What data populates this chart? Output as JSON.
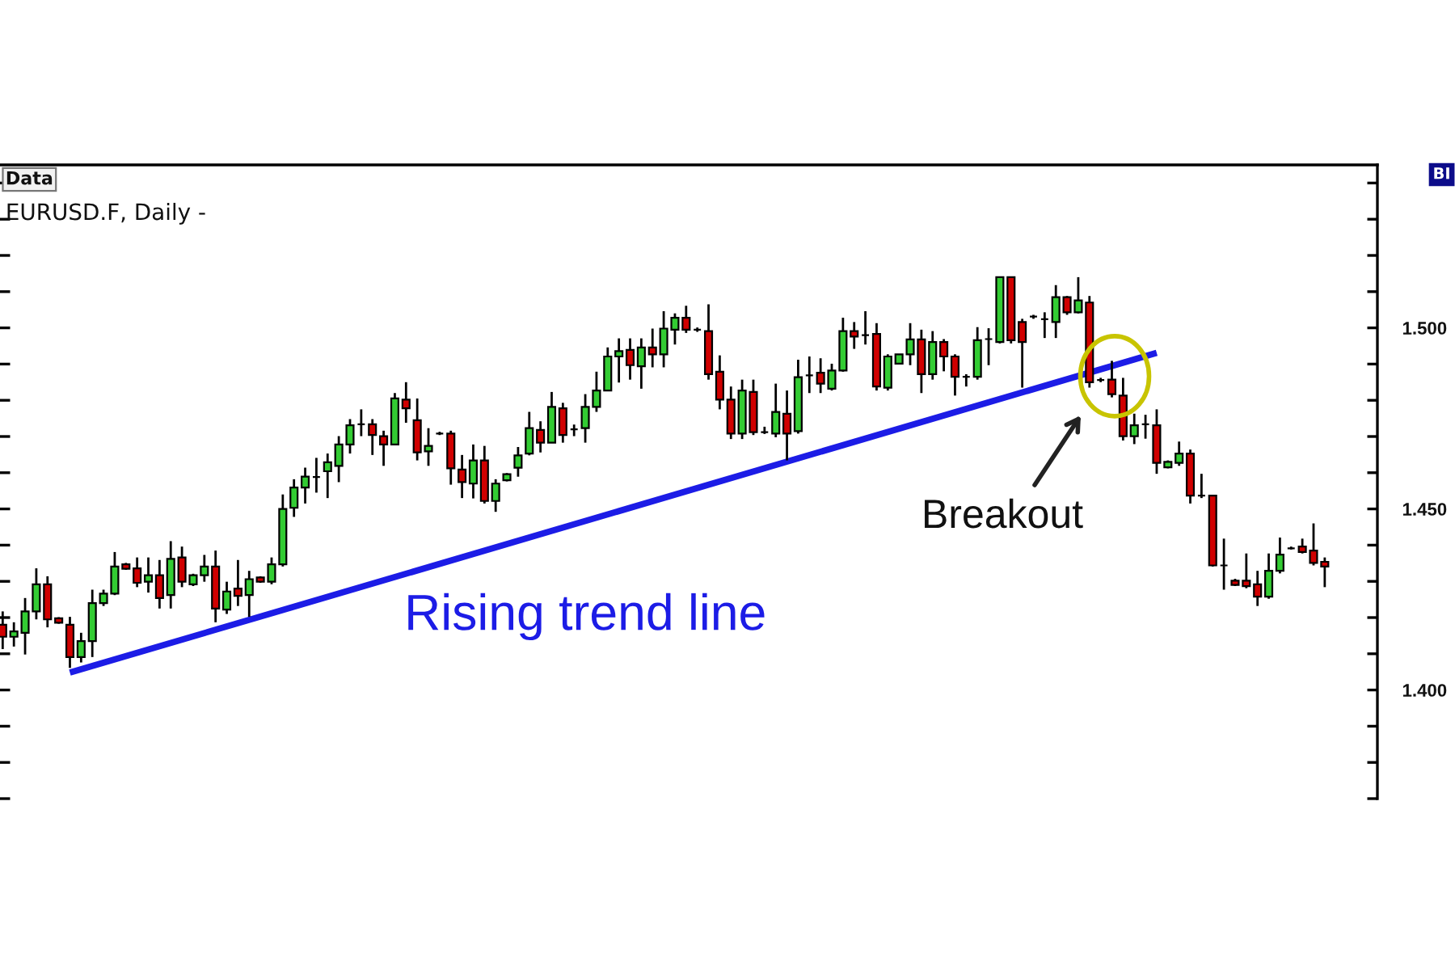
{
  "chart_data": {
    "type": "candlestick",
    "title": "EURUSD.F, Daily -",
    "categories": [
      null,
      null,
      null,
      null,
      null,
      null,
      null,
      null,
      null,
      null,
      null,
      null,
      null,
      null,
      null,
      null,
      null,
      null,
      null,
      null,
      null,
      null,
      null,
      null,
      null,
      null,
      null,
      null,
      null,
      null,
      null,
      null,
      null,
      null,
      null,
      null,
      null,
      null,
      null,
      null,
      null,
      null,
      null,
      null,
      null,
      null,
      null,
      null,
      null,
      null,
      null,
      null,
      null,
      null,
      null,
      null,
      null,
      null,
      null,
      null,
      null,
      null,
      null,
      null,
      null,
      null,
      null,
      null,
      null,
      null,
      null,
      null,
      null,
      null,
      null,
      null,
      null,
      null,
      null,
      null,
      null,
      null,
      null,
      null,
      null,
      null,
      null,
      null,
      null,
      null,
      null,
      null,
      null,
      null,
      null,
      null,
      null,
      null,
      null,
      null,
      null,
      null,
      null,
      null,
      null,
      null,
      null,
      null,
      null,
      null,
      null,
      null,
      null,
      null,
      null,
      null,
      null,
      null,
      null
    ],
    "ohlc": [
      [
        1.418,
        1.4217,
        1.4113,
        1.4147
      ],
      [
        1.4147,
        1.4187,
        1.412,
        1.4162
      ],
      [
        1.4158,
        1.4254,
        1.4098,
        1.4217
      ],
      [
        1.4217,
        1.4336,
        1.4195,
        1.4292
      ],
      [
        1.4292,
        1.4314,
        1.4173,
        1.4195
      ],
      [
        1.4198,
        1.4201,
        1.4183,
        1.4186
      ],
      [
        1.418,
        1.4202,
        1.4061,
        1.4091
      ],
      [
        1.4091,
        1.4158,
        1.4076,
        1.4135
      ],
      [
        1.4135,
        1.4277,
        1.4091,
        1.424
      ],
      [
        1.424,
        1.4277,
        1.4232,
        1.4266
      ],
      [
        1.4266,
        1.4381,
        1.4262,
        1.4341
      ],
      [
        1.4347,
        1.4351,
        1.4332,
        1.4335
      ],
      [
        1.4336,
        1.4366,
        1.4284,
        1.4296
      ],
      [
        1.4299,
        1.4366,
        1.4269,
        1.4317
      ],
      [
        1.4317,
        1.4359,
        1.4225,
        1.4254
      ],
      [
        1.4262,
        1.4411,
        1.4225,
        1.4362
      ],
      [
        1.4366,
        1.4396,
        1.4284,
        1.4299
      ],
      [
        1.4292,
        1.4321,
        1.4287,
        1.4317
      ],
      [
        1.4317,
        1.4373,
        1.4299,
        1.4341
      ],
      [
        1.4341,
        1.4385,
        1.4187,
        1.4225
      ],
      [
        1.4222,
        1.4299,
        1.421,
        1.4272
      ],
      [
        1.428,
        1.4359,
        1.4232,
        1.426
      ],
      [
        1.4262,
        1.4329,
        1.4202,
        1.4306
      ],
      [
        1.4311,
        1.4314,
        1.4296,
        1.4299
      ],
      [
        1.4299,
        1.4366,
        1.4292,
        1.4347
      ],
      [
        1.4347,
        1.454,
        1.4341,
        1.45
      ],
      [
        1.4503,
        1.4582,
        1.4478,
        1.4559
      ],
      [
        1.4559,
        1.4614,
        1.4515,
        1.4589
      ],
      [
        1.4588,
        1.4641,
        1.4545,
        1.4588
      ],
      [
        1.4604,
        1.4653,
        1.453,
        1.4629
      ],
      [
        1.4619,
        1.4701,
        1.4574,
        1.4678
      ],
      [
        1.4678,
        1.4748,
        1.4653,
        1.4731
      ],
      [
        1.4734,
        1.4775,
        1.4701,
        1.4734
      ],
      [
        1.4734,
        1.4748,
        1.4649,
        1.4704
      ],
      [
        1.4701,
        1.4716,
        1.4619,
        1.4678
      ],
      [
        1.4678,
        1.482,
        1.4678,
        1.4805
      ],
      [
        1.4802,
        1.485,
        1.4738,
        1.4778
      ],
      [
        1.4745,
        1.4805,
        1.4634,
        1.4656
      ],
      [
        1.4659,
        1.4723,
        1.4619,
        1.4674
      ],
      [
        1.4708,
        1.4713,
        1.4704,
        1.4708
      ],
      [
        1.4708,
        1.4716,
        1.4567,
        1.4612
      ],
      [
        1.4609,
        1.4649,
        1.453,
        1.4574
      ],
      [
        1.457,
        1.4678,
        1.4529,
        1.4634
      ],
      [
        1.4634,
        1.4674,
        1.4515,
        1.4522
      ],
      [
        1.4522,
        1.4582,
        1.4492,
        1.457
      ],
      [
        1.4579,
        1.4599,
        1.4576,
        1.4596
      ],
      [
        1.4614,
        1.4671,
        1.4589,
        1.4648
      ],
      [
        1.4653,
        1.4768,
        1.4648,
        1.4723
      ],
      [
        1.4718,
        1.4742,
        1.4656,
        1.4683
      ],
      [
        1.4683,
        1.4823,
        1.4683,
        1.4782
      ],
      [
        1.4778,
        1.4793,
        1.4683,
        1.4704
      ],
      [
        1.472,
        1.4733,
        1.4701,
        1.472
      ],
      [
        1.4723,
        1.4817,
        1.4683,
        1.4782
      ],
      [
        1.4782,
        1.4879,
        1.4768,
        1.4827
      ],
      [
        1.4827,
        1.4946,
        1.4827,
        1.4921
      ],
      [
        1.4921,
        1.4971,
        1.4849,
        1.4936
      ],
      [
        1.4939,
        1.4971,
        1.4857,
        1.4897
      ],
      [
        1.4894,
        1.4971,
        1.4832,
        1.4946
      ],
      [
        1.4946,
        1.4998,
        1.4891,
        1.4927
      ],
      [
        1.4927,
        1.5046,
        1.4891,
        1.4998
      ],
      [
        1.4995,
        1.504,
        1.4954,
        1.5028
      ],
      [
        1.5028,
        1.5061,
        1.4986,
        1.4995
      ],
      [
        1.4995,
        1.5001,
        1.4989,
        1.4995
      ],
      [
        1.4991,
        1.5065,
        1.4857,
        1.4872
      ],
      [
        1.4879,
        1.4924,
        1.4775,
        1.4802
      ],
      [
        1.4802,
        1.4838,
        1.4693,
        1.4708
      ],
      [
        1.4708,
        1.4857,
        1.4693,
        1.4827
      ],
      [
        1.4823,
        1.4857,
        1.4704,
        1.4712
      ],
      [
        1.4712,
        1.4727,
        1.4707,
        1.4712
      ],
      [
        1.4708,
        1.4846,
        1.4698,
        1.4768
      ],
      [
        1.4763,
        1.4827,
        1.4634,
        1.4708
      ],
      [
        1.4715,
        1.4912,
        1.4708,
        1.4864
      ],
      [
        1.4869,
        1.4921,
        1.482,
        1.4869
      ],
      [
        1.4876,
        1.4916,
        1.482,
        1.4846
      ],
      [
        1.4832,
        1.4901,
        1.4827,
        1.4882
      ],
      [
        1.4882,
        1.5028,
        1.4879,
        1.4991
      ],
      [
        1.4991,
        1.5016,
        1.4942,
        1.4976
      ],
      [
        1.498,
        1.5046,
        1.4954,
        1.498
      ],
      [
        1.4983,
        1.5013,
        1.4827,
        1.4838
      ],
      [
        1.4835,
        1.4927,
        1.4827,
        1.4921
      ],
      [
        1.4901,
        1.4927,
        1.4901,
        1.4927
      ],
      [
        1.4927,
        1.5013,
        1.4897,
        1.4968
      ],
      [
        1.4968,
        1.4995,
        1.482,
        1.4872
      ],
      [
        1.4872,
        1.4991,
        1.4857,
        1.4961
      ],
      [
        1.4961,
        1.4969,
        1.488,
        1.4921
      ],
      [
        1.4921,
        1.4927,
        1.4813,
        1.4865
      ],
      [
        1.4865,
        1.4872,
        1.4838,
        1.4865
      ],
      [
        1.4865,
        1.5002,
        1.4857,
        1.4966
      ],
      [
        1.4969,
        1.4999,
        1.4897,
        1.4969
      ],
      [
        1.4961,
        1.514,
        1.4957,
        1.514
      ],
      [
        1.514,
        1.514,
        1.4957,
        1.4966
      ],
      [
        1.5016,
        1.5025,
        1.4835,
        1.4961
      ],
      [
        1.5031,
        1.5036,
        1.5025,
        1.5031
      ],
      [
        1.5024,
        1.5043,
        1.4972,
        1.5024
      ],
      [
        1.5016,
        1.5118,
        1.4972,
        1.5085
      ],
      [
        1.5085,
        1.5088,
        1.5036,
        1.5043
      ],
      [
        1.5043,
        1.514,
        1.504,
        1.5076
      ],
      [
        1.507,
        1.5088,
        1.4835,
        1.485
      ],
      [
        1.4856,
        1.4862,
        1.485,
        1.4856
      ],
      [
        1.4857,
        1.4909,
        1.4808,
        1.4817
      ],
      [
        1.4813,
        1.4862,
        1.4689,
        1.4701
      ],
      [
        1.4701,
        1.4763,
        1.4679,
        1.4731
      ],
      [
        1.4734,
        1.476,
        1.4694,
        1.4734
      ],
      [
        1.4731,
        1.4775,
        1.4597,
        1.4627
      ],
      [
        1.4615,
        1.4634,
        1.4612,
        1.463
      ],
      [
        1.4627,
        1.4686,
        1.4619,
        1.4653
      ],
      [
        1.4653,
        1.4664,
        1.4515,
        1.4537
      ],
      [
        1.4537,
        1.4597,
        1.453,
        1.4537
      ],
      [
        1.4537,
        1.4537,
        1.4341,
        1.4344
      ],
      [
        1.4344,
        1.4418,
        1.4277,
        1.4344
      ],
      [
        1.4302,
        1.4307,
        1.4287,
        1.429
      ],
      [
        1.4302,
        1.4377,
        1.4281,
        1.4287
      ],
      [
        1.4292,
        1.4329,
        1.4232,
        1.4258
      ],
      [
        1.4258,
        1.4377,
        1.4252,
        1.4329
      ],
      [
        1.4329,
        1.4421,
        1.4322,
        1.4374
      ],
      [
        1.4391,
        1.4396,
        1.4388,
        1.4391
      ],
      [
        1.4396,
        1.4418,
        1.4377,
        1.4381
      ],
      [
        1.4385,
        1.446,
        1.4344,
        1.4351
      ],
      [
        1.4354,
        1.4366,
        1.4284,
        1.4341
      ]
    ],
    "colors": [
      "#d00000",
      "#33cc33",
      "#33cc33",
      "#33cc33",
      "#d00000",
      "#d00000",
      "#d00000",
      "#33cc33",
      "#33cc33",
      "#33cc33",
      "#33cc33",
      "#d00000",
      "#d00000",
      "#33cc33",
      "#d00000",
      "#33cc33",
      "#d00000",
      "#33cc33",
      "#33cc33",
      "#d00000",
      "#33cc33",
      "#d00000",
      "#33cc33",
      "#d00000",
      "#33cc33",
      "#33cc33",
      "#33cc33",
      "#33cc33",
      "#000000",
      "#33cc33",
      "#33cc33",
      "#33cc33",
      "#000000",
      "#d00000",
      "#d00000",
      "#33cc33",
      "#d00000",
      "#d00000",
      "#33cc33",
      "#000000",
      "#d00000",
      "#d00000",
      "#33cc33",
      "#d00000",
      "#33cc33",
      "#33cc33",
      "#33cc33",
      "#33cc33",
      "#d00000",
      "#33cc33",
      "#d00000",
      "#000000",
      "#33cc33",
      "#33cc33",
      "#33cc33",
      "#33cc33",
      "#d00000",
      "#33cc33",
      "#d00000",
      "#33cc33",
      "#33cc33",
      "#d00000",
      "#000000",
      "#d00000",
      "#d00000",
      "#d00000",
      "#33cc33",
      "#d00000",
      "#000000",
      "#33cc33",
      "#d00000",
      "#33cc33",
      "#000000",
      "#d00000",
      "#33cc33",
      "#33cc33",
      "#d00000",
      "#000000",
      "#d00000",
      "#33cc33",
      "#33cc33",
      "#33cc33",
      "#d00000",
      "#33cc33",
      "#d00000",
      "#d00000",
      "#000000",
      "#33cc33",
      "#000000",
      "#33cc33",
      "#d00000",
      "#d00000",
      "#000000",
      "#000000",
      "#33cc33",
      "#d00000",
      "#33cc33",
      "#d00000",
      "#000000",
      "#d00000",
      "#d00000",
      "#33cc33",
      "#000000",
      "#d00000",
      "#33cc33",
      "#33cc33",
      "#d00000",
      "#000000",
      "#d00000",
      "#000000",
      "#d00000",
      "#d00000",
      "#d00000",
      "#33cc33",
      "#33cc33",
      "#000000",
      "#d00000",
      "#d00000",
      "#d00000"
    ],
    "series": [
      {
        "type": "line",
        "name": "Rising trend line",
        "color": "#1c1ce6",
        "values": [
          null,
          null,
          null,
          null,
          null,
          null,
          1.4048,
          null,
          null,
          null,
          null,
          null,
          null,
          null,
          null,
          null,
          null,
          null,
          null,
          null,
          null,
          null,
          null,
          null,
          null,
          null,
          null,
          null,
          null,
          null,
          null,
          null,
          null,
          null,
          null,
          null,
          null,
          null,
          null,
          null,
          null,
          null,
          null,
          null,
          null,
          null,
          null,
          null,
          null,
          null,
          null,
          null,
          null,
          null,
          null,
          null,
          null,
          null,
          null,
          null,
          null,
          null,
          null,
          null,
          null,
          null,
          null,
          null,
          null,
          null,
          null,
          null,
          null,
          null,
          null,
          null,
          null,
          null,
          null,
          null,
          null,
          null,
          null,
          null,
          null,
          null,
          null,
          null,
          null,
          null,
          null,
          null,
          null,
          null,
          null,
          null,
          null,
          null,
          null,
          null,
          null,
          null,
          null,
          1.4931,
          null,
          null,
          null,
          null,
          null,
          null,
          null,
          null,
          null,
          null,
          null,
          null,
          null,
          null,
          null
        ]
      }
    ],
    "ylim": [
      1.37,
      1.545
    ],
    "yticks": [
      {
        "value": 1.37,
        "label": null
      },
      {
        "value": 1.38,
        "label": null
      },
      {
        "value": 1.39,
        "label": null
      },
      {
        "value": 1.4,
        "label": "1.400"
      },
      {
        "value": 1.41,
        "label": null
      },
      {
        "value": 1.42,
        "label": null
      },
      {
        "value": 1.43,
        "label": null
      },
      {
        "value": 1.44,
        "label": null
      },
      {
        "value": 1.45,
        "label": "1.450"
      },
      {
        "value": 1.46,
        "label": null
      },
      {
        "value": 1.47,
        "label": null
      },
      {
        "value": 1.48,
        "label": null
      },
      {
        "value": 1.49,
        "label": null
      },
      {
        "value": 1.5,
        "label": "1.500"
      },
      {
        "value": 1.51,
        "label": null
      },
      {
        "value": 1.52,
        "label": null
      },
      {
        "value": 1.53,
        "label": null
      },
      {
        "value": 1.54,
        "label": null
      }
    ],
    "tick_labels": "y",
    "annotations": [
      "Data",
      "Breakout",
      "BI"
    ]
  }
}
